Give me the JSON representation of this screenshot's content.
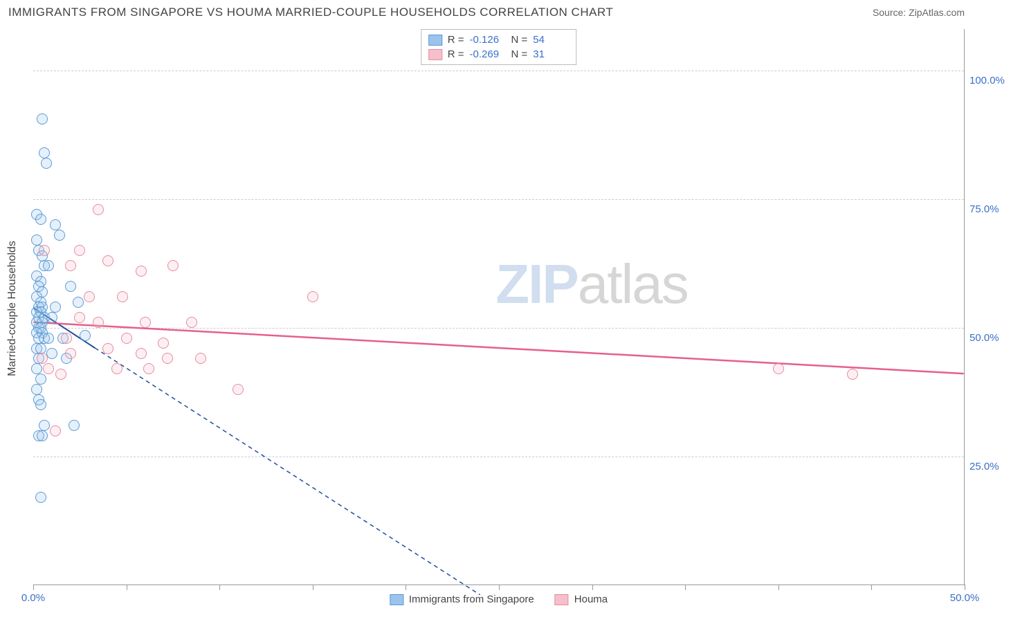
{
  "header": {
    "title": "IMMIGRANTS FROM SINGAPORE VS HOUMA MARRIED-COUPLE HOUSEHOLDS CORRELATION CHART",
    "source_label": "Source:",
    "source_name": "ZipAtlas.com"
  },
  "watermark": {
    "part1": "ZIP",
    "part2": "atlas"
  },
  "chart": {
    "type": "scatter",
    "ylabel": "Married-couple Households",
    "background_color": "#ffffff",
    "grid_color": "#cccccc",
    "axis_color": "#999999",
    "tick_color": "#3b6fc9",
    "label_fontsize": 16,
    "tick_fontsize": 15,
    "xlim": [
      0,
      50
    ],
    "ylim": [
      0,
      108
    ],
    "x_ticks": [
      0,
      5,
      10,
      15,
      20,
      25,
      30,
      35,
      40,
      45,
      50
    ],
    "x_tick_labels": {
      "0": "0.0%",
      "50": "50.0%"
    },
    "y_gridlines": [
      25,
      50,
      75,
      100
    ],
    "y_tick_labels": {
      "25": "25.0%",
      "50": "50.0%",
      "75": "75.0%",
      "100": "100.0%"
    },
    "marker_radius": 8,
    "marker_stroke_width": 1.5,
    "marker_fill_opacity": 0.25,
    "series": [
      {
        "name": "Immigrants from Singapore",
        "color_fill": "#9cc3ea",
        "color_stroke": "#5a9bd5",
        "regression": {
          "x1": 0,
          "y1": 53.8,
          "x2": 3.3,
          "y2": 46,
          "dashed_extend_x": 24,
          "dashed_extend_y": -2,
          "stroke": "#1f4e9c",
          "width": 2
        },
        "points": [
          [
            0.5,
            90.5
          ],
          [
            0.6,
            84
          ],
          [
            0.7,
            82
          ],
          [
            0.2,
            72
          ],
          [
            0.4,
            71
          ],
          [
            1.2,
            70
          ],
          [
            1.4,
            68
          ],
          [
            0.2,
            67
          ],
          [
            0.3,
            65
          ],
          [
            0.5,
            64
          ],
          [
            0.6,
            62
          ],
          [
            0.8,
            62
          ],
          [
            0.2,
            60
          ],
          [
            0.4,
            59
          ],
          [
            0.3,
            58
          ],
          [
            0.5,
            57
          ],
          [
            0.2,
            56
          ],
          [
            0.4,
            55
          ],
          [
            0.3,
            54
          ],
          [
            0.5,
            54
          ],
          [
            0.2,
            53
          ],
          [
            0.4,
            53
          ],
          [
            0.3,
            52
          ],
          [
            0.6,
            52
          ],
          [
            0.2,
            51
          ],
          [
            0.5,
            51
          ],
          [
            0.3,
            50
          ],
          [
            0.4,
            50
          ],
          [
            0.2,
            49
          ],
          [
            0.5,
            49
          ],
          [
            0.3,
            48
          ],
          [
            0.6,
            48
          ],
          [
            0.8,
            48
          ],
          [
            1.6,
            48
          ],
          [
            2.8,
            48.5
          ],
          [
            0.2,
            46
          ],
          [
            0.4,
            46
          ],
          [
            1.0,
            45
          ],
          [
            0.3,
            44
          ],
          [
            1.8,
            44
          ],
          [
            0.2,
            42
          ],
          [
            0.4,
            40
          ],
          [
            0.2,
            38
          ],
          [
            0.3,
            36
          ],
          [
            0.4,
            35
          ],
          [
            2.0,
            58
          ],
          [
            2.4,
            55
          ],
          [
            0.6,
            31
          ],
          [
            2.2,
            31
          ],
          [
            0.3,
            29
          ],
          [
            0.5,
            29
          ],
          [
            0.4,
            17
          ],
          [
            1.0,
            52
          ],
          [
            1.2,
            54
          ]
        ]
      },
      {
        "name": "Houma",
        "color_fill": "#f5c0cb",
        "color_stroke": "#e88aa0",
        "regression": {
          "x1": 0,
          "y1": 51,
          "x2": 50,
          "y2": 41,
          "stroke": "#e75f8a",
          "width": 2.5
        },
        "points": [
          [
            3.5,
            73
          ],
          [
            0.6,
            65
          ],
          [
            2.0,
            62
          ],
          [
            4.0,
            63
          ],
          [
            5.8,
            61
          ],
          [
            7.5,
            62
          ],
          [
            3.0,
            56
          ],
          [
            4.8,
            56
          ],
          [
            15.0,
            56
          ],
          [
            2.5,
            52
          ],
          [
            3.5,
            51
          ],
          [
            6.0,
            51
          ],
          [
            8.5,
            51
          ],
          [
            5.0,
            48
          ],
          [
            7.0,
            47
          ],
          [
            2.0,
            45
          ],
          [
            4.0,
            46
          ],
          [
            5.8,
            45
          ],
          [
            7.2,
            44
          ],
          [
            9.0,
            44
          ],
          [
            4.5,
            42
          ],
          [
            6.2,
            42
          ],
          [
            0.8,
            42
          ],
          [
            1.5,
            41
          ],
          [
            11.0,
            38
          ],
          [
            0.5,
            44
          ],
          [
            1.8,
            48
          ],
          [
            1.2,
            30
          ],
          [
            40.0,
            42
          ],
          [
            44.0,
            41
          ],
          [
            2.5,
            65
          ]
        ]
      }
    ],
    "stat_box": {
      "rows": [
        {
          "swatch_fill": "#9cc3ea",
          "swatch_stroke": "#5a9bd5",
          "r_label": "R =",
          "r_value": "-0.126",
          "n_label": "N =",
          "n_value": "54"
        },
        {
          "swatch_fill": "#f5c0cb",
          "swatch_stroke": "#e88aa0",
          "r_label": "R =",
          "r_value": "-0.269",
          "n_label": "N =",
          "n_value": "31"
        }
      ]
    },
    "legend": [
      {
        "swatch_fill": "#9cc3ea",
        "swatch_stroke": "#5a9bd5",
        "label": "Immigrants from Singapore"
      },
      {
        "swatch_fill": "#f5c0cb",
        "swatch_stroke": "#e88aa0",
        "label": "Houma"
      }
    ]
  }
}
